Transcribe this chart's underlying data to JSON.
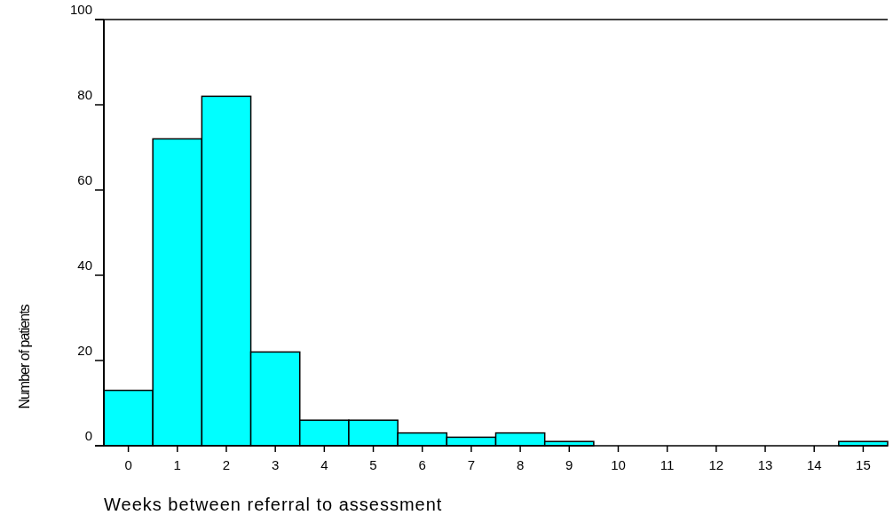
{
  "chart_data": {
    "type": "histogram",
    "xlabel": "Weeks between referral to assessment",
    "ylabel": "Number of patients",
    "bins": [
      -0.5,
      0.5,
      1.5,
      2.5,
      3.5,
      4.5,
      5.5,
      6.5,
      7.5,
      8.5,
      9.5,
      10.5,
      11.5,
      12.5,
      13.5,
      14.5,
      15.5
    ],
    "values": [
      13,
      72,
      82,
      22,
      6,
      6,
      3,
      2,
      3,
      1,
      0,
      0,
      0,
      0,
      0,
      1
    ],
    "color": "#00ffff",
    "xlim": [
      -0.5,
      15.5
    ],
    "xticks": [
      0,
      1,
      2,
      3,
      4,
      5,
      6,
      7,
      8,
      9,
      10,
      11,
      12,
      13,
      14,
      15
    ],
    "ylim": [
      0,
      100
    ],
    "yticks": [
      0,
      20,
      40,
      60,
      80,
      100
    ],
    "grid": false
  }
}
